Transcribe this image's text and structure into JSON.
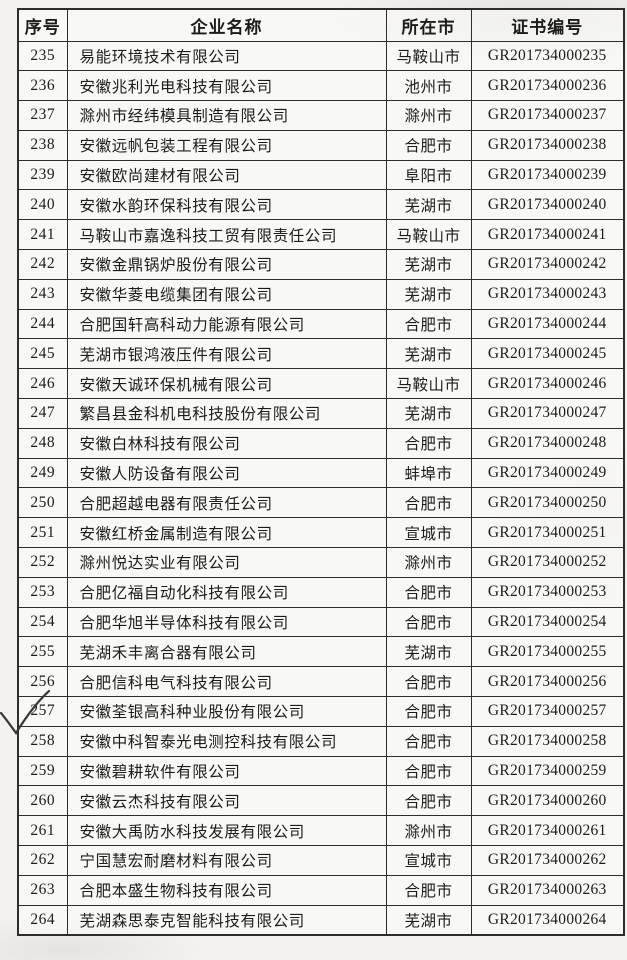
{
  "document": {
    "type": "scanned-certificate-list-page",
    "annotations": {
      "checkmark_row": "257",
      "checkmark_description": "handwritten check mark in left margin beside row 257"
    },
    "colors": {
      "paper": "#f3f2ef",
      "cell_fill": "#fcfbf9",
      "border": "#2e2d2b",
      "ink": "#1c1c1c"
    }
  },
  "table": {
    "headers": [
      "序号",
      "企业名称",
      "所在市",
      "证书编号"
    ],
    "rows": [
      {
        "no": "235",
        "name": "易能环境技术有限公司",
        "city": "马鞍山市",
        "cert": "GR201734000235"
      },
      {
        "no": "236",
        "name": "安徽兆利光电科技有限公司",
        "city": "池州市",
        "cert": "GR201734000236"
      },
      {
        "no": "237",
        "name": "滁州市经纬模具制造有限公司",
        "city": "滁州市",
        "cert": "GR201734000237"
      },
      {
        "no": "238",
        "name": "安徽远帆包装工程有限公司",
        "city": "合肥市",
        "cert": "GR201734000238"
      },
      {
        "no": "239",
        "name": "安徽欧尚建材有限公司",
        "city": "阜阳市",
        "cert": "GR201734000239"
      },
      {
        "no": "240",
        "name": "安徽水韵环保科技有限公司",
        "city": "芜湖市",
        "cert": "GR201734000240"
      },
      {
        "no": "241",
        "name": "马鞍山市嘉逸科技工贸有限责任公司",
        "city": "马鞍山市",
        "cert": "GR201734000241"
      },
      {
        "no": "242",
        "name": "安徽金鼎锅炉股份有限公司",
        "city": "芜湖市",
        "cert": "GR201734000242"
      },
      {
        "no": "243",
        "name": "安徽华菱电缆集团有限公司",
        "city": "芜湖市",
        "cert": "GR201734000243"
      },
      {
        "no": "244",
        "name": "合肥国轩高科动力能源有限公司",
        "city": "合肥市",
        "cert": "GR201734000244"
      },
      {
        "no": "245",
        "name": "芜湖市银鸿液压件有限公司",
        "city": "芜湖市",
        "cert": "GR201734000245"
      },
      {
        "no": "246",
        "name": "安徽天诚环保机械有限公司",
        "city": "马鞍山市",
        "cert": "GR201734000246"
      },
      {
        "no": "247",
        "name": "繁昌县金科机电科技股份有限公司",
        "city": "芜湖市",
        "cert": "GR201734000247"
      },
      {
        "no": "248",
        "name": "安徽白林科技有限公司",
        "city": "合肥市",
        "cert": "GR201734000248"
      },
      {
        "no": "249",
        "name": "安徽人防设备有限公司",
        "city": "蚌埠市",
        "cert": "GR201734000249"
      },
      {
        "no": "250",
        "name": "合肥超越电器有限责任公司",
        "city": "合肥市",
        "cert": "GR201734000250"
      },
      {
        "no": "251",
        "name": "安徽红桥金属制造有限公司",
        "city": "宣城市",
        "cert": "GR201734000251"
      },
      {
        "no": "252",
        "name": "滁州悦达实业有限公司",
        "city": "滁州市",
        "cert": "GR201734000252"
      },
      {
        "no": "253",
        "name": "合肥亿福自动化科技有限公司",
        "city": "合肥市",
        "cert": "GR201734000253"
      },
      {
        "no": "254",
        "name": "合肥华旭半导体科技有限公司",
        "city": "合肥市",
        "cert": "GR201734000254"
      },
      {
        "no": "255",
        "name": "芜湖禾丰离合器有限公司",
        "city": "芜湖市",
        "cert": "GR201734000255"
      },
      {
        "no": "256",
        "name": "合肥信科电气科技有限公司",
        "city": "合肥市",
        "cert": "GR201734000256"
      },
      {
        "no": "257",
        "name": "安徽荃银高科种业股份有限公司",
        "city": "合肥市",
        "cert": "GR201734000257"
      },
      {
        "no": "258",
        "name": "安徽中科智泰光电测控科技有限公司",
        "city": "合肥市",
        "cert": "GR201734000258"
      },
      {
        "no": "259",
        "name": "安徽碧耕软件有限公司",
        "city": "合肥市",
        "cert": "GR201734000259"
      },
      {
        "no": "260",
        "name": "安徽云杰科技有限公司",
        "city": "合肥市",
        "cert": "GR201734000260"
      },
      {
        "no": "261",
        "name": "安徽大禹防水科技发展有限公司",
        "city": "滁州市",
        "cert": "GR201734000261"
      },
      {
        "no": "262",
        "name": "宁国慧宏耐磨材料有限公司",
        "city": "宣城市",
        "cert": "GR201734000262"
      },
      {
        "no": "263",
        "name": "合肥本盛生物科技有限公司",
        "city": "合肥市",
        "cert": "GR201734000263"
      },
      {
        "no": "264",
        "name": "芜湖森思泰克智能科技有限公司",
        "city": "芜湖市",
        "cert": "GR201734000264"
      }
    ]
  }
}
